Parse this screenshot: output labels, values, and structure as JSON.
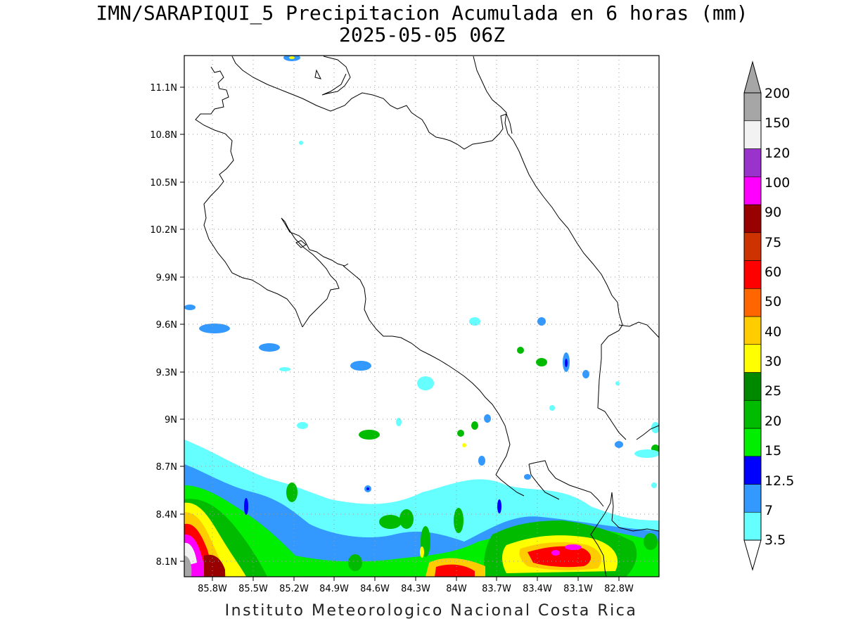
{
  "title": {
    "line1": "IMN/SARAPIQUI_5 Precipitacion Acumulada en 6 horas (mm)",
    "line2": "2025-05-05 06Z"
  },
  "footer": "Instituto Meteorologico Nacional Costa Rica",
  "map": {
    "lat_ticks": [
      "11.1N",
      "10.8N",
      "10.5N",
      "10.2N",
      "9.9N",
      "9.6N",
      "9.3N",
      "9N",
      "8.7N",
      "8.4N",
      "8.1N"
    ],
    "lon_ticks": [
      "85.8W",
      "85.5W",
      "85.2W",
      "84.9W",
      "84.6W",
      "84.3W",
      "84W",
      "83.7W",
      "83.4W",
      "83.1W",
      "82.8W"
    ],
    "grid": true
  },
  "colorbar": {
    "labels": [
      "3.5",
      "7",
      "12.5",
      "15",
      "20",
      "25",
      "30",
      "40",
      "50",
      "60",
      "75",
      "90",
      "100",
      "120",
      "150",
      "200"
    ],
    "colors": [
      "#66ffff",
      "#3399ff",
      "#0000ff",
      "#00ee00",
      "#00bb00",
      "#008800",
      "#ffff00",
      "#ffcc00",
      "#ff6600",
      "#ff0000",
      "#cc3300",
      "#990000",
      "#ff00ff",
      "#9933cc",
      "#f2f2f2",
      "#a6a6a6"
    ],
    "low_color": "#ffffff",
    "high_color": "#a6a6a6"
  }
}
